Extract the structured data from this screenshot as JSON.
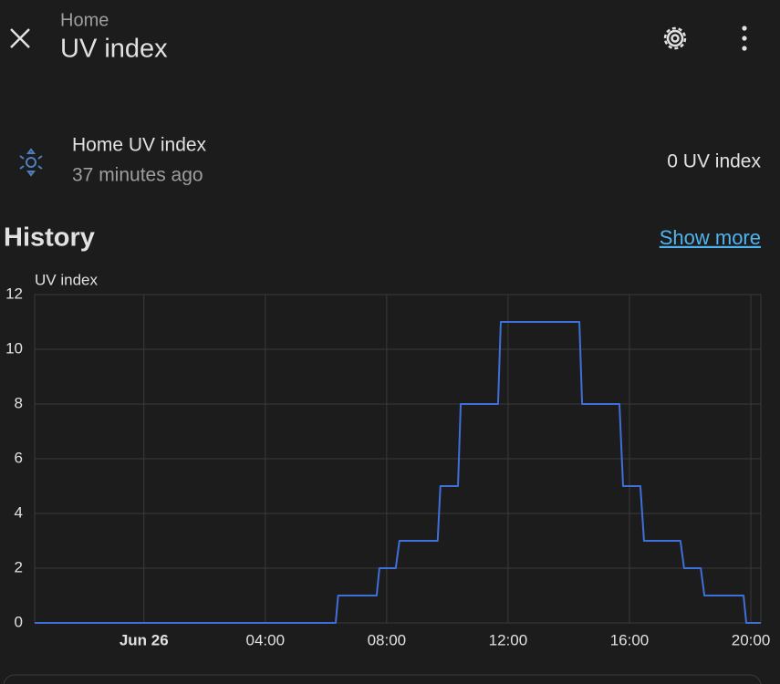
{
  "header": {
    "subtitle": "Home",
    "title": "UV index"
  },
  "entity": {
    "name": "Home UV index",
    "last_changed": "37 minutes ago",
    "state": "0 UV index"
  },
  "history": {
    "title": "History",
    "link": "Show more"
  },
  "chart_data": {
    "type": "line",
    "y_label": "UV index",
    "color": "#3f6fd8",
    "grid": true,
    "x": [
      -3.6,
      6.32,
      6.4,
      7.67,
      7.76,
      8.3,
      8.42,
      9.68,
      9.77,
      10.35,
      10.44,
      11.67,
      11.76,
      14.35,
      14.44,
      15.67,
      15.79,
      16.36,
      16.48,
      17.68,
      17.8,
      18.35,
      18.47,
      19.76,
      19.85,
      20.33
    ],
    "values": [
      0,
      0,
      1,
      1,
      2,
      2,
      3,
      3,
      5,
      5,
      8,
      8,
      11,
      11,
      8,
      8,
      5,
      5,
      3,
      3,
      2,
      2,
      1,
      1,
      0,
      0
    ],
    "xlim": [
      -3.6,
      20.33
    ],
    "xticks": [
      {
        "value": 0,
        "label": "Jun 26"
      },
      {
        "value": 4,
        "label": "04:00"
      },
      {
        "value": 8,
        "label": "08:00"
      },
      {
        "value": 12,
        "label": "12:00"
      },
      {
        "value": 16,
        "label": "16:00"
      },
      {
        "value": 20,
        "label": "20:00"
      }
    ],
    "ylim": [
      0,
      12
    ],
    "yticks": [
      0,
      2,
      4,
      6,
      8,
      10,
      12
    ]
  }
}
